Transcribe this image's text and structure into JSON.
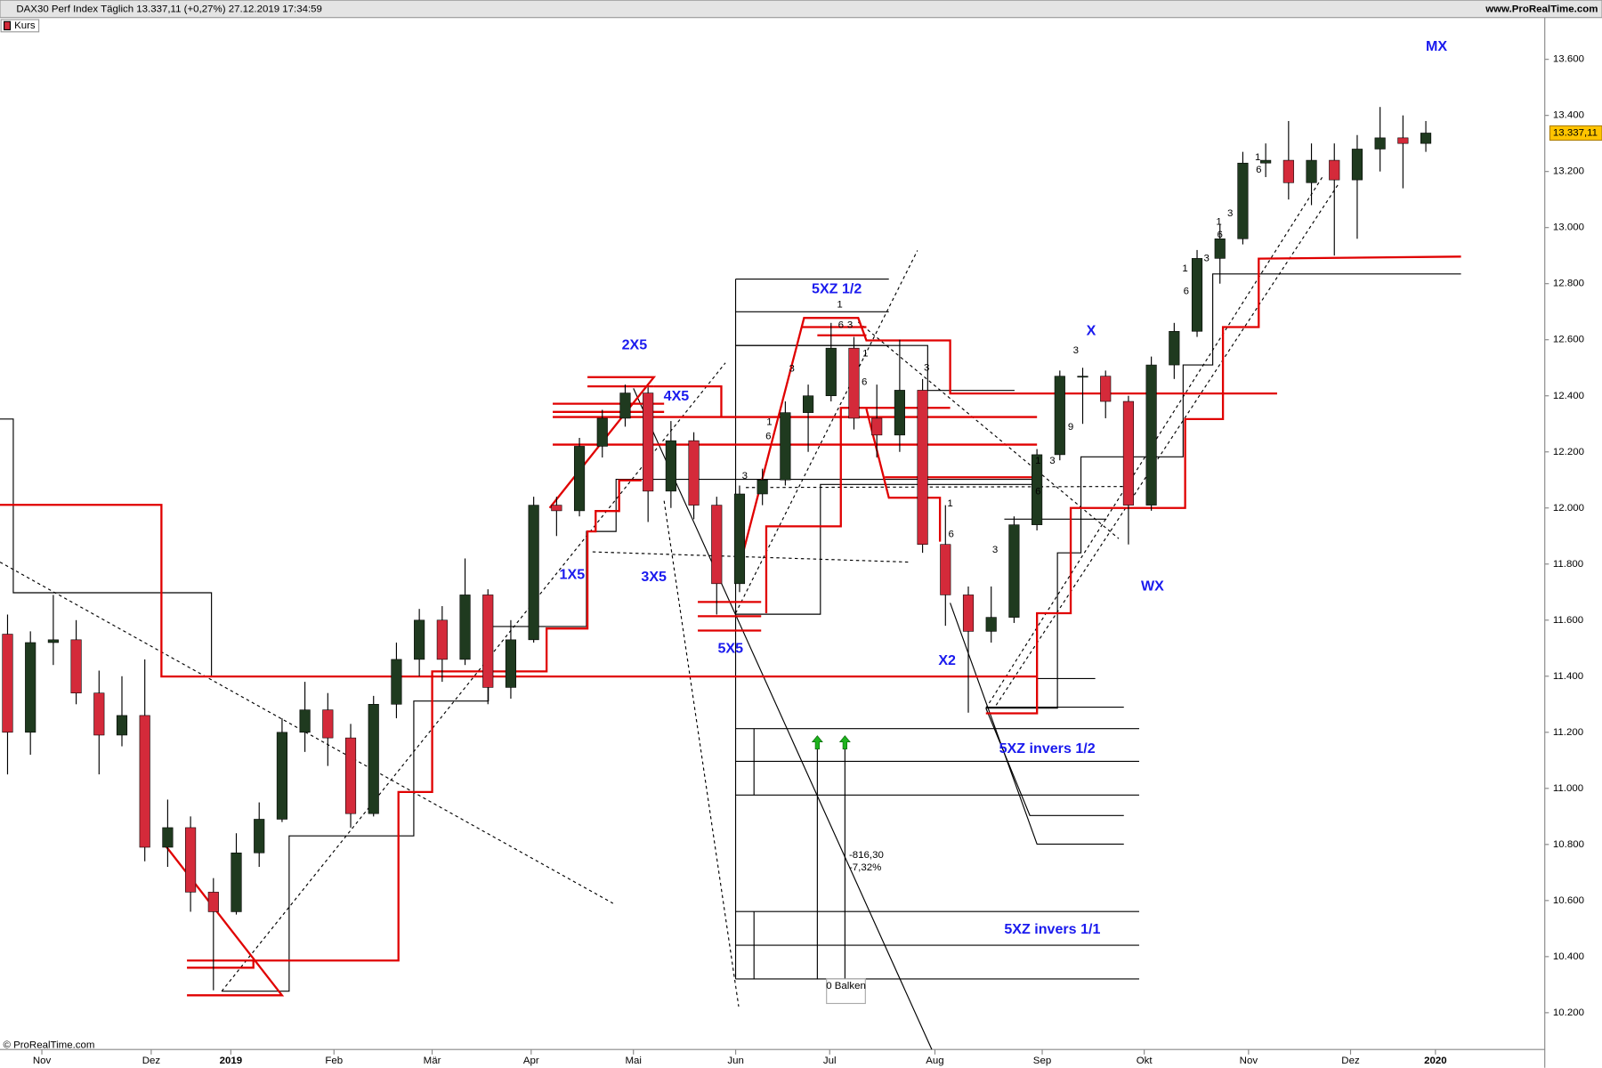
{
  "header": {
    "title": "DAX30 Perf Index Täglich 13.337,11 (+0,27%) 27.12.2019 17:34:59",
    "website": "www.ProRealTime.com",
    "legend": "Kurs",
    "copyright": "© ProRealTime.com"
  },
  "chart_data": {
    "type": "candlestick",
    "open": [
      11550,
      11200,
      11520,
      11530,
      11340,
      11190,
      11260,
      10790,
      10860,
      10630,
      10560,
      10770,
      10890,
      11200,
      11280,
      11180,
      10910,
      11300,
      11460,
      11600,
      11460,
      11690,
      11360,
      11530,
      12010,
      11990,
      12220,
      12320,
      12410,
      12060,
      12240,
      12010,
      11730,
      12050,
      12100,
      12340,
      12400,
      12570,
      12320,
      12260,
      12420,
      11870,
      11690,
      11560,
      11610,
      11940,
      12190,
      12470,
      12470,
      12380,
      12010,
      12510,
      12630,
      12890,
      12960,
      13230,
      13240,
      13160,
      13240,
      13170,
      13280,
      13320,
      13300
    ],
    "high": [
      11620,
      11560,
      11690,
      11600,
      11420,
      11400,
      11460,
      10960,
      10900,
      10680,
      10840,
      10950,
      11250,
      11380,
      11340,
      11230,
      11330,
      11520,
      11640,
      11650,
      11820,
      11710,
      11600,
      12040,
      12040,
      12250,
      12350,
      12440,
      12430,
      12310,
      12270,
      12040,
      12080,
      12140,
      12380,
      12440,
      12660,
      12610,
      12440,
      12600,
      12460,
      12010,
      11720,
      11720,
      11970,
      12210,
      12490,
      12500,
      12490,
      12400,
      12540,
      12660,
      12920,
      13010,
      13270,
      13300,
      13380,
      13300,
      13300,
      13330,
      13430,
      13400,
      13380
    ],
    "low": [
      11050,
      11120,
      11440,
      11300,
      11050,
      11150,
      10740,
      10720,
      10560,
      10280,
      10550,
      10720,
      10880,
      11130,
      11080,
      10860,
      10900,
      11250,
      11400,
      11380,
      11440,
      11300,
      11320,
      11520,
      11900,
      11970,
      12180,
      12290,
      11950,
      12000,
      11960,
      11620,
      11700,
      12010,
      12080,
      12200,
      12380,
      12280,
      12180,
      12200,
      11840,
      11580,
      11270,
      11520,
      11590,
      11920,
      12170,
      12300,
      12320,
      11870,
      11990,
      12460,
      12610,
      12800,
      12940,
      13180,
      13100,
      13080,
      12900,
      12960,
      13200,
      13140,
      13270
    ],
    "close": [
      11200,
      11520,
      11530,
      11340,
      11190,
      11260,
      10790,
      10860,
      10630,
      10560,
      10770,
      10890,
      11200,
      11280,
      11180,
      10910,
      11300,
      11460,
      11600,
      11460,
      11690,
      11360,
      11530,
      12010,
      11990,
      12220,
      12320,
      12410,
      12060,
      12240,
      12010,
      11730,
      12050,
      12100,
      12340,
      12400,
      12570,
      12320,
      12260,
      12420,
      11870,
      11690,
      11560,
      11610,
      11940,
      12190,
      12470,
      12470,
      12380,
      12010,
      12510,
      12630,
      12890,
      12960,
      13230,
      13240,
      13160,
      13240,
      13170,
      13280,
      13320,
      13300,
      13337.11
    ],
    "up_color": "#1f3a1f",
    "down_color": "#d42a3a",
    "xlim": [
      -0.33,
      67.2
    ],
    "xticks": [
      {
        "value": 1.5,
        "label": "Nov"
      },
      {
        "value": 6.28,
        "label": "Dez"
      },
      {
        "value": 9.76,
        "label": "2019"
      },
      {
        "value": 14.27,
        "label": "Feb"
      },
      {
        "value": 18.56,
        "label": "Mär"
      },
      {
        "value": 22.89,
        "label": "Apr"
      },
      {
        "value": 27.36,
        "label": "Mai"
      },
      {
        "value": 31.83,
        "label": "Jun"
      },
      {
        "value": 35.94,
        "label": "Jul"
      },
      {
        "value": 40.54,
        "label": "Aug"
      },
      {
        "value": 45.23,
        "label": "Sep"
      },
      {
        "value": 49.69,
        "label": "Okt"
      },
      {
        "value": 54.25,
        "label": "Nov"
      },
      {
        "value": 58.71,
        "label": "Dez"
      },
      {
        "value": 62.42,
        "label": "2020"
      }
    ],
    "ylim": [
      10069,
      13749
    ],
    "yticks": [
      {
        "value": 10200,
        "label": "10.200"
      },
      {
        "value": 10400,
        "label": "10.400"
      },
      {
        "value": 10600,
        "label": "10.600"
      },
      {
        "value": 10800,
        "label": "10.800"
      },
      {
        "value": 11000,
        "label": "11.000"
      },
      {
        "value": 11200,
        "label": "11.200"
      },
      {
        "value": 11400,
        "label": "11.400"
      },
      {
        "value": 11600,
        "label": "11.600"
      },
      {
        "value": 11800,
        "label": "11.800"
      },
      {
        "value": 12000,
        "label": "12.000"
      },
      {
        "value": 12200,
        "label": "12.200"
      },
      {
        "value": 12400,
        "label": "12.400"
      },
      {
        "value": 12600,
        "label": "12.600"
      },
      {
        "value": 12800,
        "label": "12.800"
      },
      {
        "value": 13000,
        "label": "13.000"
      },
      {
        "value": 13200,
        "label": "13.200"
      },
      {
        "value": 13400,
        "label": "13.400"
      },
      {
        "value": 13600,
        "label": "13.600"
      }
    ],
    "grid": false,
    "last_value_label": "13.337,11",
    "wave_labels": [
      "MX",
      "2X5",
      "4X5",
      "1X5",
      "3X5",
      "5X5",
      "5XZ 1/2",
      "X",
      "X2",
      "WX",
      "5XZ invers 1/2",
      "5XZ invers 1/1"
    ],
    "count_labels": [
      "1",
      "3",
      "1",
      "6",
      "3",
      "6",
      "3",
      "1",
      "6",
      "3",
      "1",
      "6",
      "3",
      "1",
      "3",
      "6",
      "9",
      "3",
      "1",
      "6",
      "3",
      "6",
      "1",
      "3",
      "1",
      "6"
    ],
    "measure": {
      "change": "-816,30",
      "percent": "-7,32%",
      "bars": "0 Balken"
    }
  }
}
